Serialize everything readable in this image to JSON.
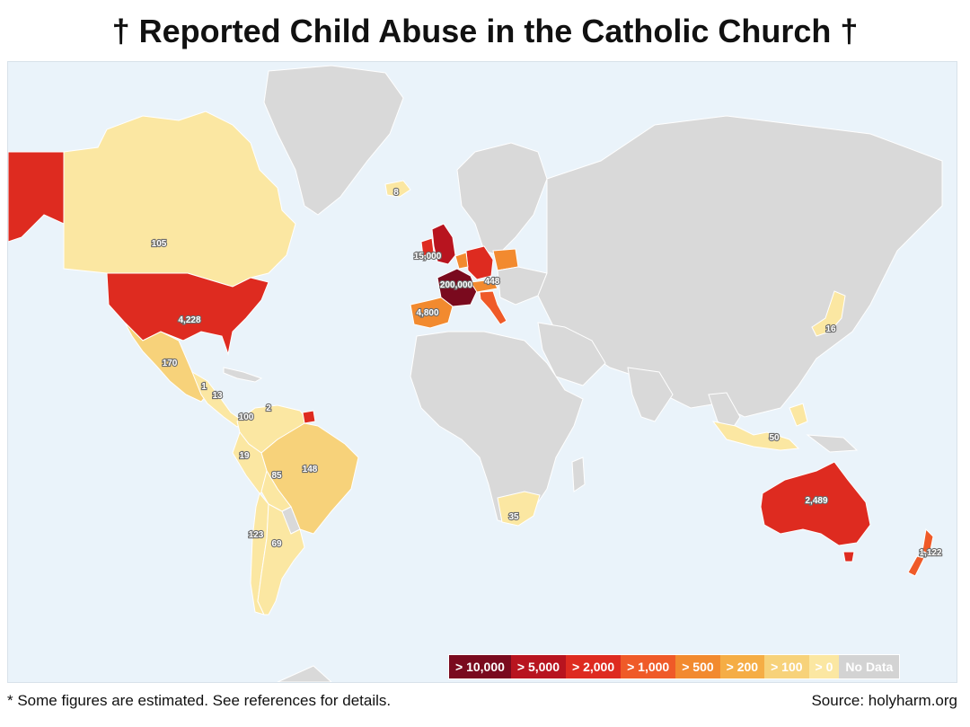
{
  "title": "† Reported Child Abuse in the Catholic Church †",
  "footnote": "* Some figures are estimated. See references for details.",
  "source": "Source: holyharm.org",
  "legend": [
    {
      "label": "> 10,000",
      "color": "#7a0a1e"
    },
    {
      "label": "> 5,000",
      "color": "#b8141f"
    },
    {
      "label": "> 2,000",
      "color": "#de2b20"
    },
    {
      "label": "> 1,000",
      "color": "#ef5a28"
    },
    {
      "label": "> 500",
      "color": "#f28a2f"
    },
    {
      "label": "> 200",
      "color": "#f5ad45"
    },
    {
      "label": "> 100",
      "color": "#f7d27a"
    },
    {
      "label": "> 0",
      "color": "#fbe7a2"
    },
    {
      "label": "No Data",
      "color": "#d3d3d3"
    }
  ],
  "map_labels": {
    "greenland_iceland": "8",
    "canada": "105",
    "usa": "4,228",
    "mexico": "170",
    "central_a": "1",
    "central_b": "13",
    "guyana": "2",
    "colombia": "100",
    "peru": "19",
    "bolivia": "85",
    "brazil": "148",
    "chile": "123",
    "argentina": "69",
    "uk_ireland": "15,000",
    "france": "200,000",
    "germany_east": "448",
    "spain": "4,800",
    "south_africa": "35",
    "japan": "16",
    "philippines_indonesia": "50",
    "australia": "2,489",
    "new_zealand": "1,122"
  },
  "colors": {
    "ocean": "#eaf3fa",
    "no_data": "#d9d9d9"
  }
}
